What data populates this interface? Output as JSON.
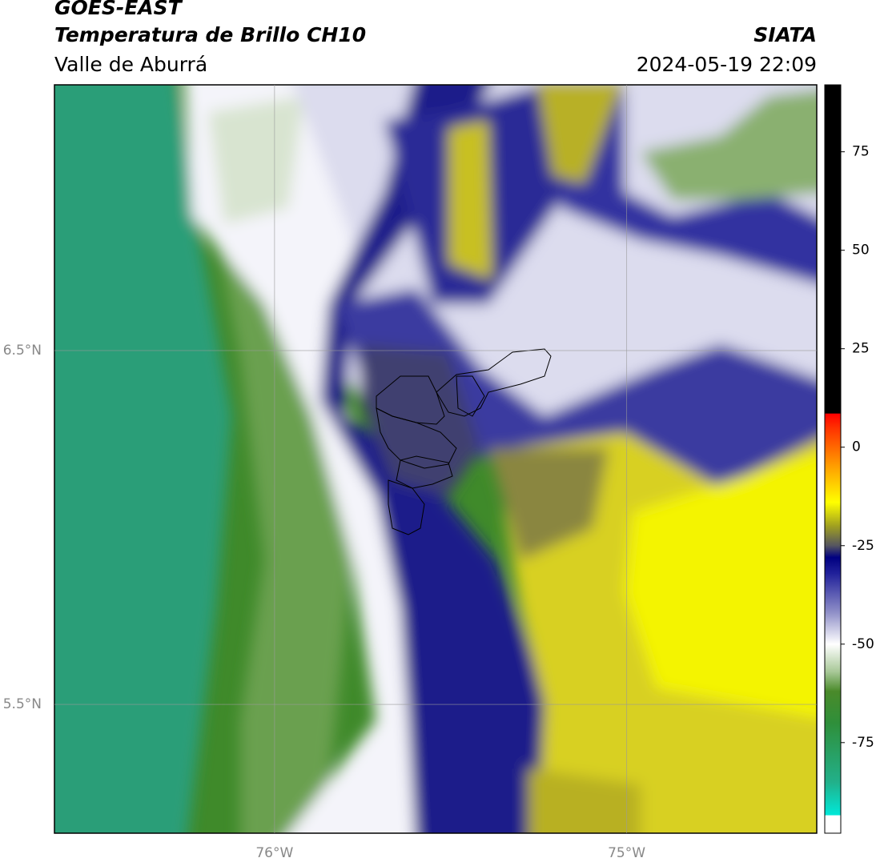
{
  "header": {
    "title": "GOES-EAST",
    "subtitle": "Temperatura de Brillo CH10",
    "region": "Valle de Aburrá",
    "agency": "SIATA",
    "datetime": "2024-05-19 22:09"
  },
  "map": {
    "xlim": [
      -76.625,
      -74.46
    ],
    "xticks": [
      {
        "value": -76,
        "label": "76°W"
      },
      {
        "value": -75,
        "label": "75°W"
      }
    ],
    "ylim": [
      5.136,
      7.251
    ],
    "yticks": [
      {
        "value": 6.5,
        "label": "6.5°N"
      },
      {
        "value": 5.5,
        "label": "5.5°N"
      }
    ],
    "grid": true
  },
  "colorbar": {
    "lim": [
      -98,
      92
    ],
    "ticks": [
      75,
      50,
      25,
      0,
      -25,
      -50,
      -75
    ],
    "stops": [
      {
        "value": -98,
        "color": "#ffffff"
      },
      {
        "value": -93.5,
        "color": "#ffffff"
      },
      {
        "value": -93.4,
        "color": "#00e8d8"
      },
      {
        "value": -85,
        "color": "#22b08a"
      },
      {
        "value": -70,
        "color": "#2f8f3a"
      },
      {
        "value": -62,
        "color": "#4a8a2a"
      },
      {
        "value": -57,
        "color": "#a8c898"
      },
      {
        "value": -50,
        "color": "#ffffff"
      },
      {
        "value": -42,
        "color": "#9090c8"
      },
      {
        "value": -32,
        "color": "#20209a"
      },
      {
        "value": -28,
        "color": "#000080"
      },
      {
        "value": -25,
        "color": "#555560"
      },
      {
        "value": -20,
        "color": "#a0a020"
      },
      {
        "value": -14,
        "color": "#ffff00"
      },
      {
        "value": -5,
        "color": "#ffa000"
      },
      {
        "value": 5,
        "color": "#ff3000"
      },
      {
        "value": 8.5,
        "color": "#ff0000"
      },
      {
        "value": 8.6,
        "color": "#000000"
      },
      {
        "value": 92,
        "color": "#000000"
      }
    ]
  }
}
